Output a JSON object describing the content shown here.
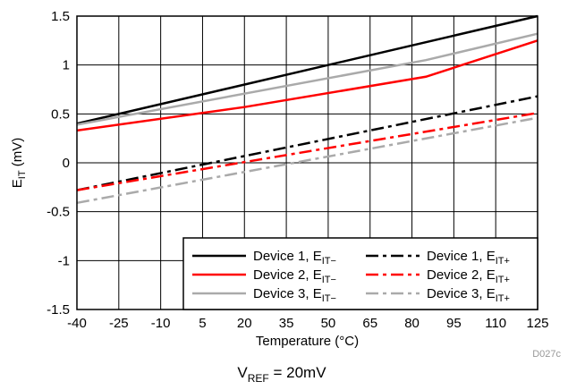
{
  "chart_data": {
    "type": "line",
    "xlabel": "Temperature (°C)",
    "ylabel": {
      "main": "E",
      "sub": "IT",
      "unit": " (mV)"
    },
    "xlim": [
      -40,
      125
    ],
    "ylim": [
      -1.5,
      1.5
    ],
    "xticks": [
      -40,
      -25,
      -10,
      5,
      20,
      35,
      50,
      65,
      80,
      95,
      110,
      125
    ],
    "xtick_labels": [
      "-40",
      "-25",
      "-10",
      "5",
      "20",
      "35",
      "50",
      "65",
      "80",
      "95",
      "110",
      "125"
    ],
    "yticks": [
      -1.5,
      -1,
      -0.5,
      0,
      0.5,
      1,
      1.5
    ],
    "ytick_labels": [
      "-1.5",
      "-1",
      "-0.5",
      "0",
      "0.5",
      "1",
      "1.5"
    ],
    "grid": true,
    "legend_position": "bottom-right",
    "series": [
      {
        "name": "Device 1, E",
        "sub": "IT−",
        "color": "#000000",
        "dash": "solid",
        "x": [
          -40,
          125
        ],
        "y": [
          0.4,
          1.5
        ]
      },
      {
        "name": "Device 2, E",
        "sub": "IT−",
        "color": "#ff0000",
        "dash": "solid",
        "x": [
          -40,
          20,
          85,
          125
        ],
        "y": [
          0.33,
          0.57,
          0.88,
          1.25
        ]
      },
      {
        "name": "Device 3, E",
        "sub": "IT−",
        "color": "#aaaaaa",
        "dash": "solid",
        "x": [
          -40,
          85,
          125
        ],
        "y": [
          0.39,
          1.05,
          1.32
        ]
      },
      {
        "name": "Device 1, E",
        "sub": "IT+",
        "color": "#000000",
        "dash": "dashdot",
        "x": [
          -40,
          125
        ],
        "y": [
          -0.28,
          0.68
        ]
      },
      {
        "name": "Device 2, E",
        "sub": "IT+",
        "color": "#ff0000",
        "dash": "dashdot",
        "x": [
          -40,
          125
        ],
        "y": [
          -0.28,
          0.51
        ]
      },
      {
        "name": "Device 3, E",
        "sub": "IT+",
        "color": "#aaaaaa",
        "dash": "dashdot",
        "x": [
          -40,
          125
        ],
        "y": [
          -0.41,
          0.46
        ]
      }
    ],
    "figure_code": "D027c",
    "caption": {
      "main": "V",
      "sub": "REF",
      "rest": " = 20mV"
    }
  }
}
